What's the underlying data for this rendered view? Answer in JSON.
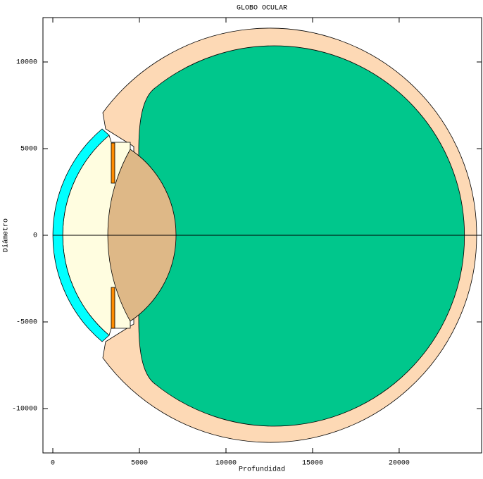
{
  "chart_data": {
    "type": "diagram",
    "title": "GLOBO OCULAR",
    "xlabel": "Profundidad",
    "ylabel": "Diámetro",
    "xlim": [
      -570,
      24760
    ],
    "ylim": [
      -12560,
      12560
    ],
    "xticks": [
      0,
      5000,
      10000,
      15000,
      20000
    ],
    "yticks": [
      -10000,
      -5000,
      0,
      5000,
      10000
    ]
  }
}
